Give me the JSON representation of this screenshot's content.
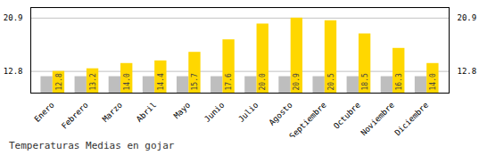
{
  "chart_data": {
    "type": "bar",
    "title": "Temperaturas Medias en gojar",
    "categories": [
      "Enero",
      "Febrero",
      "Marzo",
      "Abril",
      "Mayo",
      "Junio",
      "Julio",
      "Agosto",
      "Septiembre",
      "Octubre",
      "Noviembre",
      "Diciembre"
    ],
    "series": [
      {
        "color": "#BEBEBE",
        "values": [
          12.0,
          12.0,
          12.0,
          12.0,
          12.0,
          12.0,
          12.0,
          12.0,
          12.0,
          12.0,
          12.0,
          12.0
        ]
      },
      {
        "color": "#FFD700",
        "values": [
          12.8,
          13.2,
          14.0,
          14.4,
          15.7,
          17.6,
          20.0,
          20.9,
          20.5,
          18.5,
          16.3,
          14.0
        ],
        "data_labels": true,
        "value_labels": [
          "12.8",
          "13.2",
          "14.0",
          "14.4",
          "15.7",
          "17.6",
          "20.0",
          "20.9",
          "20.5",
          "18.5",
          "16.3",
          "14.0"
        ]
      }
    ],
    "ylim": [
      9.5,
      22.5
    ],
    "yticks": [
      12.8,
      20.9
    ],
    "grid": true
  }
}
